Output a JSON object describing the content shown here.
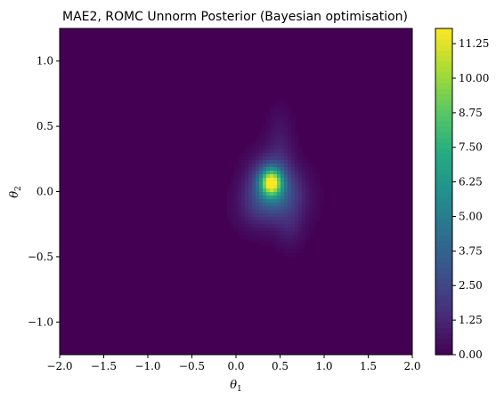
{
  "chart_data": {
    "type": "heatmap",
    "title": "MAE2, ROMC Unnorm Posterior (Bayesian optimisation)",
    "xlabel": "θ",
    "xlabel_sub": "1",
    "ylabel": "θ",
    "ylabel_sub": "2",
    "xlim": [
      -2.0,
      2.0
    ],
    "ylim": [
      -1.25,
      1.25
    ],
    "xticks": [
      -2.0,
      -1.5,
      -1.0,
      -0.5,
      0.0,
      0.5,
      1.0,
      1.5,
      2.0
    ],
    "xtick_labels": [
      "−2.0",
      "−1.5",
      "−1.0",
      "−0.5",
      "0.0",
      "0.5",
      "1.0",
      "1.5",
      "2.0"
    ],
    "yticks": [
      -1.0,
      -0.5,
      0.0,
      0.5,
      1.0
    ],
    "ytick_labels": [
      "−1.0",
      "−0.5",
      "0.0",
      "0.5",
      "1.0"
    ],
    "colorbar": {
      "min": 0.0,
      "max": 11.8,
      "ticks": [
        0.0,
        1.25,
        2.5,
        3.75,
        5.0,
        6.25,
        7.5,
        8.75,
        10.0,
        11.25
      ],
      "tick_labels": [
        "0.00",
        "1.25",
        "2.50",
        "3.75",
        "5.00",
        "6.25",
        "7.50",
        "8.75",
        "10.00",
        "11.25"
      ],
      "colormap": "viridis"
    },
    "density_peak": {
      "theta1": 0.4,
      "theta2": 0.07,
      "value": 11.6
    },
    "density_components": [
      {
        "theta1": 0.4,
        "theta2": 0.07,
        "sx": 0.08,
        "sy": 0.07,
        "amp": 8.5
      },
      {
        "theta1": 0.38,
        "theta2": 0.05,
        "sx": 0.16,
        "sy": 0.14,
        "amp": 3.5
      },
      {
        "theta1": 0.55,
        "theta2": -0.05,
        "sx": 0.18,
        "sy": 0.15,
        "amp": 2.0
      },
      {
        "theta1": 0.5,
        "theta2": 0.35,
        "sx": 0.1,
        "sy": 0.18,
        "amp": 0.8
      },
      {
        "theta1": 0.2,
        "theta2": -0.12,
        "sx": 0.15,
        "sy": 0.12,
        "amp": 1.0
      },
      {
        "theta1": 0.62,
        "theta2": -0.3,
        "sx": 0.1,
        "sy": 0.1,
        "amp": 0.6
      }
    ]
  }
}
